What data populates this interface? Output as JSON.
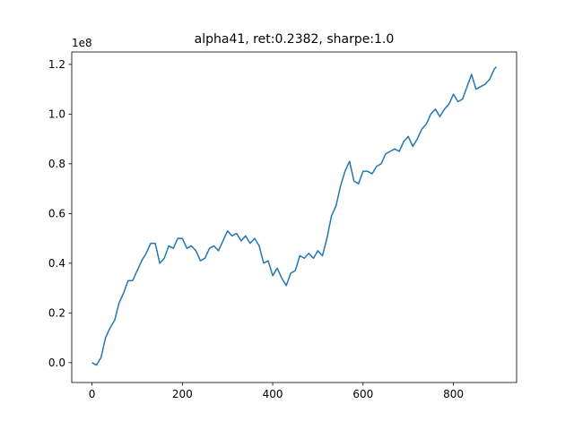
{
  "chart_data": {
    "type": "line",
    "title": "alpha41, ret:0.2382, sharpe:1.0",
    "y_offset_label": "1e8",
    "x": [
      0,
      10,
      20,
      30,
      40,
      50,
      60,
      70,
      80,
      90,
      100,
      110,
      120,
      130,
      140,
      150,
      160,
      170,
      180,
      190,
      200,
      210,
      220,
      230,
      240,
      250,
      260,
      270,
      280,
      290,
      300,
      310,
      320,
      330,
      340,
      350,
      360,
      370,
      380,
      390,
      400,
      410,
      420,
      430,
      440,
      450,
      460,
      470,
      480,
      490,
      500,
      510,
      520,
      530,
      540,
      550,
      560,
      570,
      580,
      590,
      600,
      610,
      620,
      630,
      640,
      650,
      660,
      670,
      680,
      690,
      700,
      710,
      720,
      730,
      740,
      750,
      760,
      770,
      780,
      790,
      800,
      810,
      820,
      830,
      840,
      850,
      860,
      870,
      880,
      890,
      895
    ],
    "series": [
      {
        "color": "#1f77b4",
        "values": [
          0.0,
          -0.01,
          0.02,
          0.1,
          0.14,
          0.17,
          0.24,
          0.28,
          0.33,
          0.33,
          0.37,
          0.41,
          0.44,
          0.48,
          0.48,
          0.4,
          0.42,
          0.47,
          0.46,
          0.5,
          0.5,
          0.46,
          0.47,
          0.45,
          0.41,
          0.42,
          0.46,
          0.47,
          0.45,
          0.49,
          0.53,
          0.51,
          0.52,
          0.49,
          0.51,
          0.48,
          0.5,
          0.47,
          0.4,
          0.41,
          0.35,
          0.38,
          0.34,
          0.31,
          0.36,
          0.37,
          0.43,
          0.42,
          0.44,
          0.42,
          0.45,
          0.43,
          0.5,
          0.59,
          0.63,
          0.71,
          0.77,
          0.81,
          0.73,
          0.72,
          0.77,
          0.77,
          0.76,
          0.79,
          0.8,
          0.84,
          0.85,
          0.86,
          0.85,
          0.89,
          0.91,
          0.87,
          0.9,
          0.94,
          0.96,
          1.0,
          1.02,
          0.99,
          1.02,
          1.04,
          1.08,
          1.05,
          1.06,
          1.11,
          1.16,
          1.1,
          1.11,
          1.12,
          1.14,
          1.18,
          1.19
        ]
      }
    ],
    "xlim": [
      -44.75,
      939.75
    ],
    "ylim": [
      -0.08,
      1.25
    ],
    "xticks": [
      0,
      200,
      400,
      600,
      800
    ],
    "yticks": [
      {
        "value": 0,
        "label": "0.0"
      },
      0.2,
      0.4,
      0.6,
      0.8,
      {
        "value": 1,
        "label": "1.0"
      },
      1.2
    ]
  }
}
